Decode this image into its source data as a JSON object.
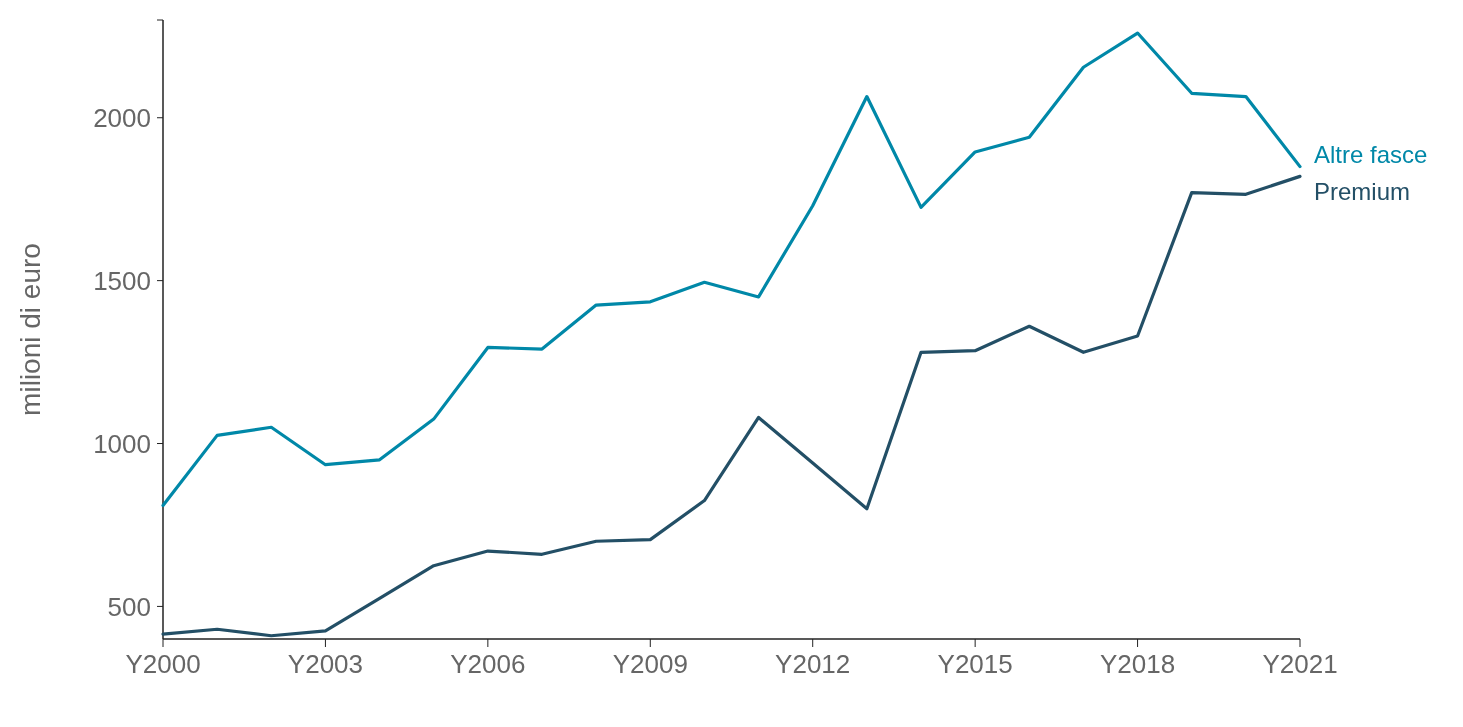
{
  "chart_data": {
    "type": "line",
    "ylabel": "milioni di euro",
    "categories": [
      "Y2000",
      null,
      null,
      "Y2003",
      null,
      null,
      "Y2006",
      null,
      null,
      "Y2009",
      null,
      null,
      "Y2012",
      null,
      null,
      "Y2015",
      null,
      null,
      "Y2018",
      null,
      null,
      "Y2021"
    ],
    "series": [
      {
        "name": "Altre fasce",
        "color": "#0088a8",
        "values": [
          810,
          1025,
          1050,
          935,
          950,
          1075,
          1295,
          1290,
          1425,
          1435,
          1495,
          1450,
          1730,
          2065,
          1725,
          1895,
          1940,
          2155,
          2260,
          2075,
          2065,
          1850
        ]
      },
      {
        "name": "Premium",
        "color": "#234f66",
        "values": [
          415,
          430,
          410,
          425,
          525,
          625,
          670,
          660,
          700,
          705,
          825,
          1080,
          940,
          800,
          1280,
          1285,
          1360,
          1280,
          1330,
          1770,
          1765,
          1820
        ]
      }
    ],
    "ylim": [
      400,
      2300
    ],
    "yticks": [
      500,
      1000,
      1500,
      2000
    ],
    "grid": false,
    "legend": false,
    "marker": "none",
    "line_style": "solid"
  }
}
